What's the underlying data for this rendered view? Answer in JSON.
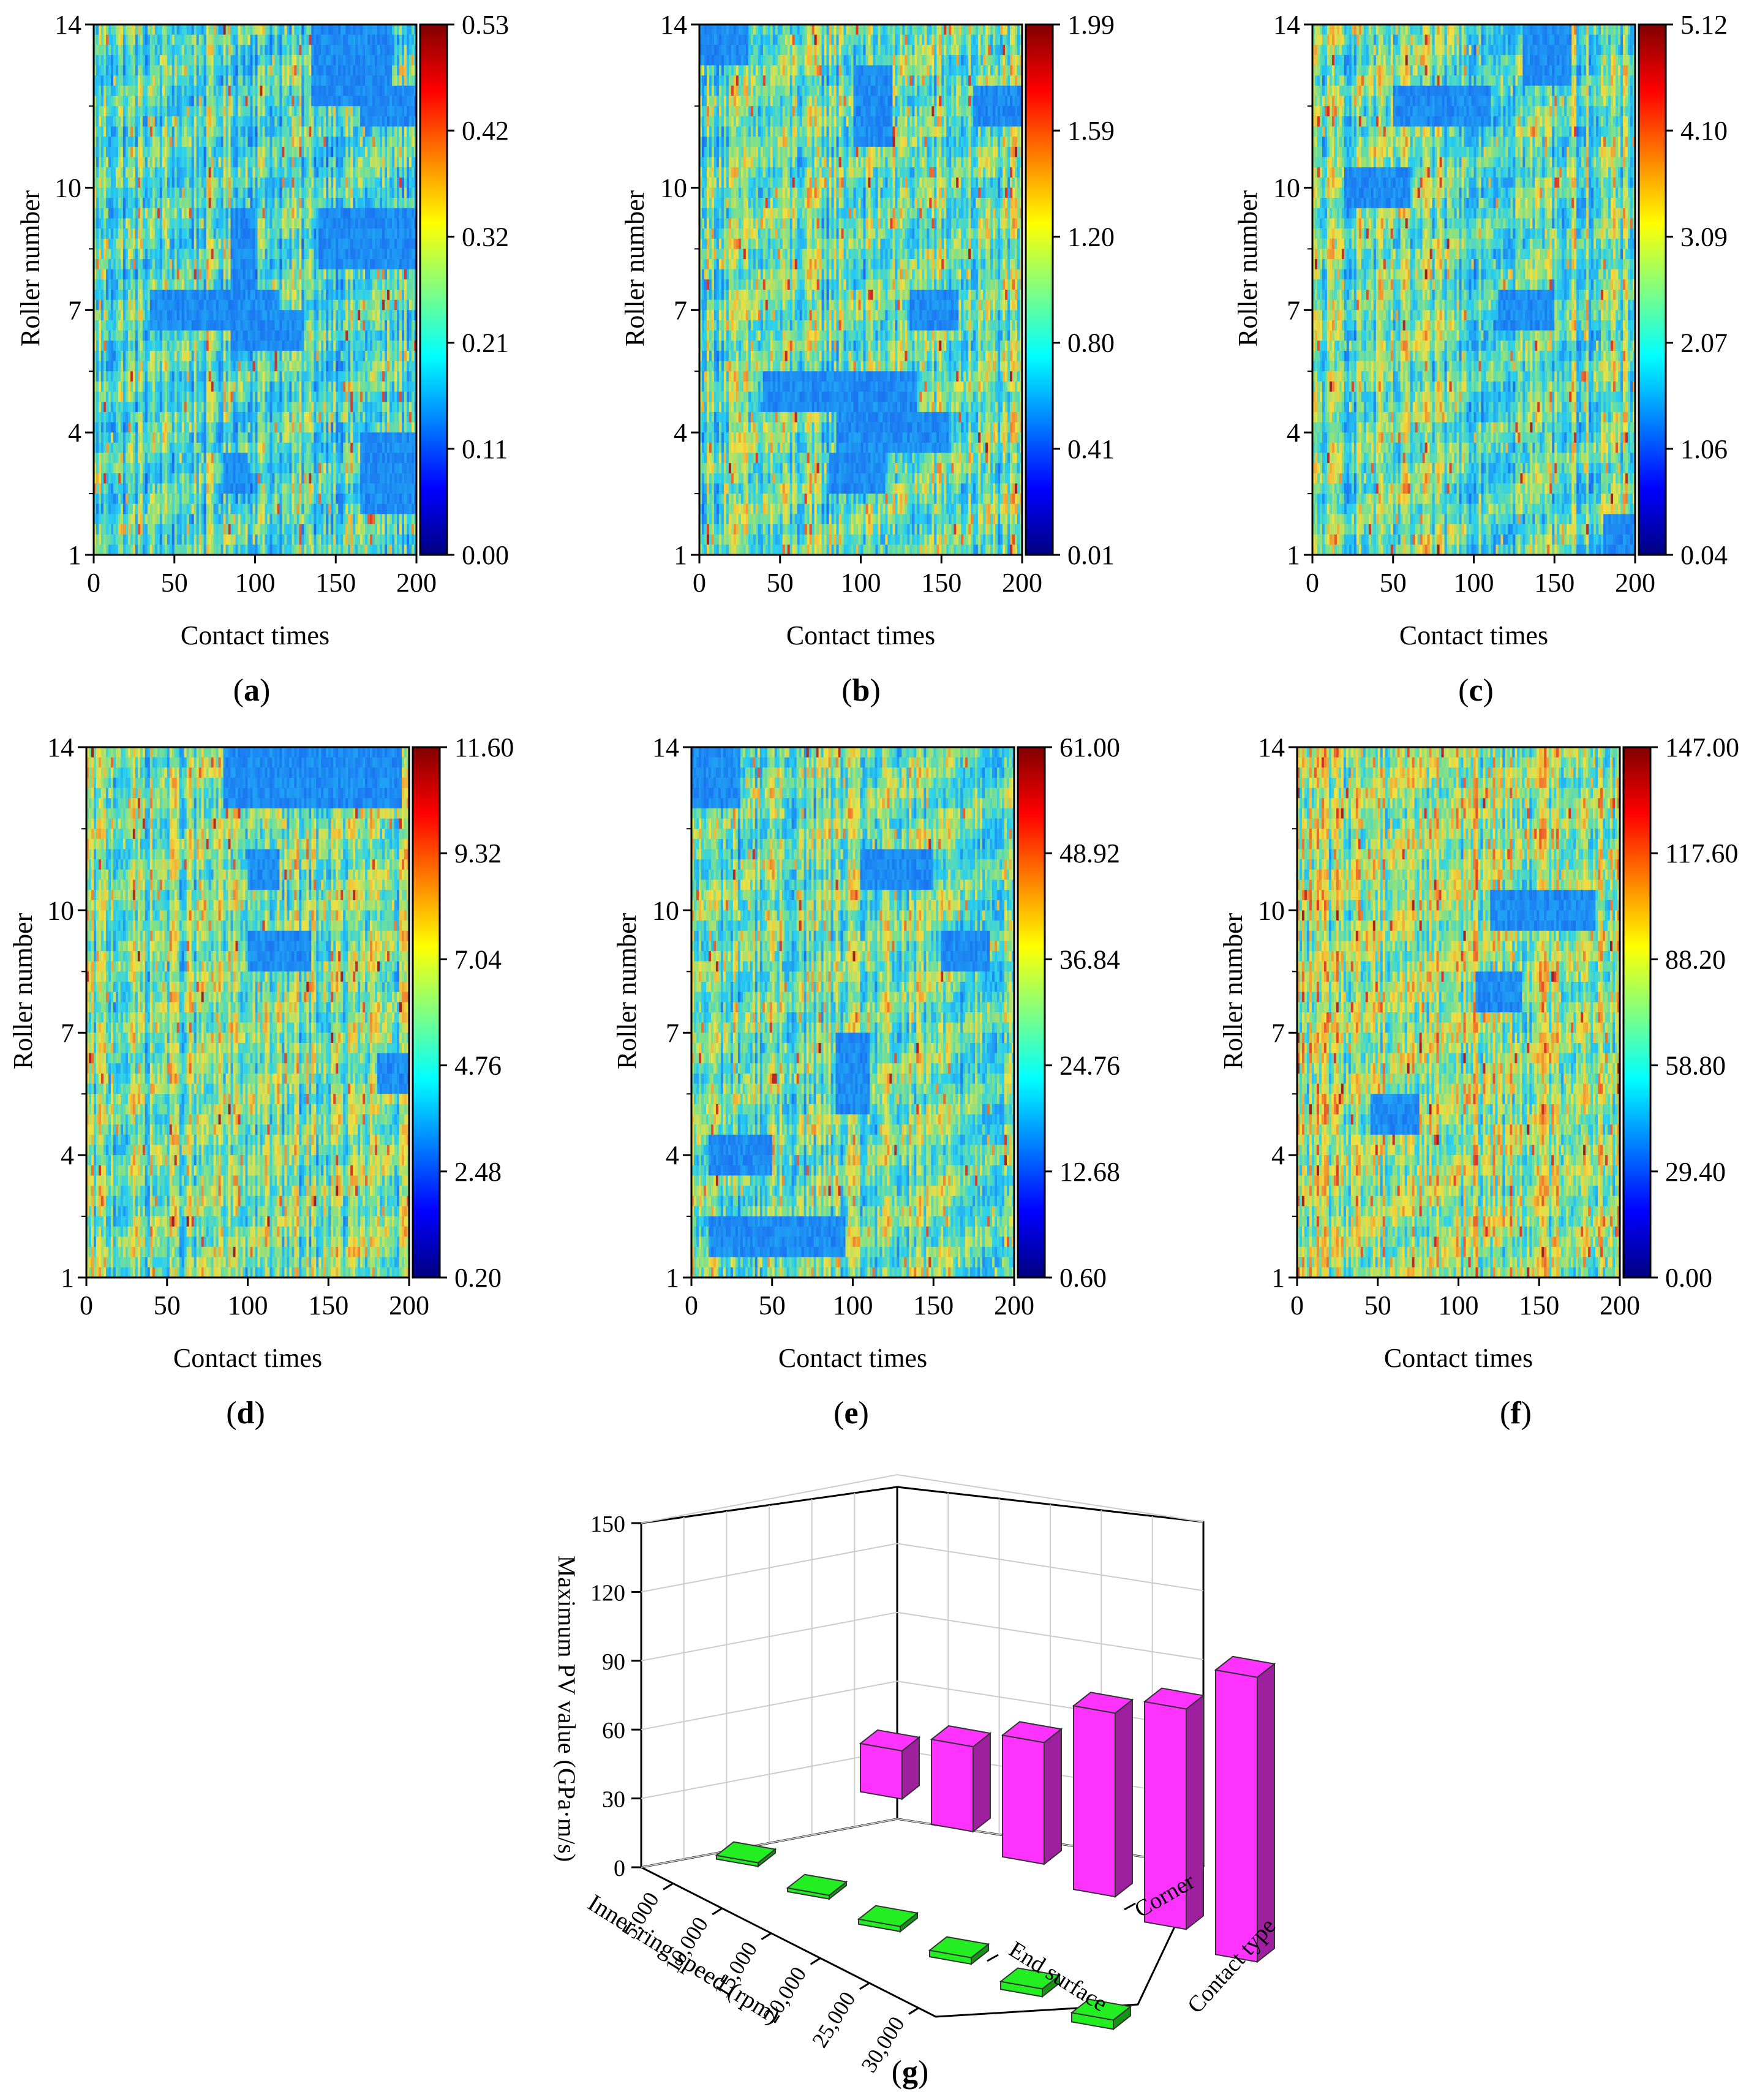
{
  "colormap": {
    "name": "jet",
    "stops": [
      "#000080",
      "#0000ff",
      "#0080ff",
      "#00ffff",
      "#80ff80",
      "#ffff00",
      "#ff8000",
      "#ff0000",
      "#800000"
    ],
    "heatmap_stops": [
      "#2030c0",
      "#1a6ff0",
      "#1fa0f5",
      "#2ad0ee",
      "#7ee08a",
      "#f0e040",
      "#f09030",
      "#e03a2a",
      "#a02020"
    ]
  },
  "chart_data": [
    {
      "id": "a",
      "type": "heatmap",
      "panel_label": "a",
      "xlabel": "Contact times",
      "ylabel": "Roller number",
      "xlim": [
        0,
        200
      ],
      "ylim": [
        1,
        14
      ],
      "xticks": [
        "0",
        "50",
        "100",
        "150",
        "200"
      ],
      "yticks": [
        "1",
        "4",
        "7",
        "10",
        "14"
      ],
      "colorbar": {
        "min": 0.0,
        "max": 0.53,
        "ticks": [
          "0.00",
          "0.11",
          "0.21",
          "0.32",
          "0.42",
          "0.53"
        ]
      },
      "baseline": 0.42,
      "low_regions": [
        {
          "x": [
            135,
            185
          ],
          "y": [
            12,
            14
          ]
        },
        {
          "x": [
            165,
            200
          ],
          "y": [
            11.5,
            12.5
          ]
        },
        {
          "x": [
            140,
            200
          ],
          "y": [
            8,
            9.5
          ]
        },
        {
          "x": [
            35,
            115
          ],
          "y": [
            6.5,
            7.5
          ]
        },
        {
          "x": [
            85,
            130
          ],
          "y": [
            6,
            7
          ]
        },
        {
          "x": [
            85,
            100
          ],
          "y": [
            7.5,
            9.5
          ]
        },
        {
          "x": [
            165,
            200
          ],
          "y": [
            2,
            4
          ]
        },
        {
          "x": [
            80,
            95
          ],
          "y": [
            2.5,
            3.5
          ]
        }
      ]
    },
    {
      "id": "b",
      "type": "heatmap",
      "panel_label": "b",
      "xlabel": "Contact times",
      "ylabel": "Roller number",
      "xlim": [
        0,
        200
      ],
      "ylim": [
        1,
        14
      ],
      "xticks": [
        "0",
        "50",
        "100",
        "150",
        "200"
      ],
      "yticks": [
        "1",
        "4",
        "7",
        "10",
        "14"
      ],
      "colorbar": {
        "min": 0.01,
        "max": 1.99,
        "ticks": [
          "0.01",
          "0.41",
          "0.80",
          "1.20",
          "1.59",
          "1.99"
        ]
      },
      "baseline": 0.45,
      "low_regions": [
        {
          "x": [
            40,
            135
          ],
          "y": [
            4.5,
            5.5
          ]
        },
        {
          "x": [
            85,
            155
          ],
          "y": [
            3.5,
            4.5
          ]
        },
        {
          "x": [
            80,
            115
          ],
          "y": [
            2.5,
            3.5
          ]
        },
        {
          "x": [
            95,
            120
          ],
          "y": [
            11,
            13
          ]
        },
        {
          "x": [
            170,
            200
          ],
          "y": [
            11.5,
            12.5
          ]
        },
        {
          "x": [
            130,
            160
          ],
          "y": [
            6.5,
            7.5
          ]
        },
        {
          "x": [
            0,
            30
          ],
          "y": [
            13,
            14
          ]
        }
      ]
    },
    {
      "id": "c",
      "type": "heatmap",
      "panel_label": "c",
      "xlabel": "Contact times",
      "ylabel": "Roller number",
      "xlim": [
        0,
        200
      ],
      "ylim": [
        1,
        14
      ],
      "xticks": [
        "0",
        "50",
        "100",
        "150",
        "200"
      ],
      "yticks": [
        "1",
        "4",
        "7",
        "10",
        "14"
      ],
      "colorbar": {
        "min": 0.04,
        "max": 5.12,
        "ticks": [
          "0.04",
          "1.06",
          "2.07",
          "3.09",
          "4.10",
          "5.12"
        ]
      },
      "baseline": 0.45,
      "low_regions": [
        {
          "x": [
            115,
            150
          ],
          "y": [
            6.5,
            7.5
          ]
        },
        {
          "x": [
            50,
            110
          ],
          "y": [
            11.5,
            12.5
          ]
        },
        {
          "x": [
            130,
            160
          ],
          "y": [
            12.5,
            14
          ]
        },
        {
          "x": [
            20,
            60
          ],
          "y": [
            9.5,
            10.5
          ]
        },
        {
          "x": [
            180,
            200
          ],
          "y": [
            1,
            2
          ]
        }
      ]
    },
    {
      "id": "d",
      "type": "heatmap",
      "panel_label": "d",
      "xlabel": "Contact times",
      "ylabel": "Roller number",
      "xlim": [
        0,
        200
      ],
      "ylim": [
        1,
        14
      ],
      "xticks": [
        "0",
        "50",
        "100",
        "150",
        "200"
      ],
      "yticks": [
        "1",
        "4",
        "7",
        "10",
        "14"
      ],
      "colorbar": {
        "min": 0.2,
        "max": 11.6,
        "ticks": [
          "0.20",
          "2.48",
          "4.76",
          "7.04",
          "9.32",
          "11.60"
        ]
      },
      "baseline": 0.48,
      "low_regions": [
        {
          "x": [
            85,
            195
          ],
          "y": [
            12.5,
            14
          ]
        },
        {
          "x": [
            100,
            140
          ],
          "y": [
            8.5,
            9.5
          ]
        },
        {
          "x": [
            180,
            200
          ],
          "y": [
            5.5,
            6.5
          ]
        },
        {
          "x": [
            100,
            120
          ],
          "y": [
            10.5,
            11.5
          ]
        }
      ]
    },
    {
      "id": "e",
      "type": "heatmap",
      "panel_label": "e",
      "xlabel": "Contact times",
      "ylabel": "Roller number",
      "xlim": [
        0,
        200
      ],
      "ylim": [
        1,
        14
      ],
      "xticks": [
        "0",
        "50",
        "100",
        "150",
        "200"
      ],
      "yticks": [
        "1",
        "4",
        "7",
        "10",
        "14"
      ],
      "colorbar": {
        "min": 0.6,
        "max": 61.0,
        "ticks": [
          "0.60",
          "12.68",
          "24.76",
          "36.84",
          "48.92",
          "61.00"
        ]
      },
      "baseline": 0.46,
      "low_regions": [
        {
          "x": [
            105,
            150
          ],
          "y": [
            10.5,
            11.5
          ]
        },
        {
          "x": [
            155,
            185
          ],
          "y": [
            8.5,
            9.5
          ]
        },
        {
          "x": [
            10,
            95
          ],
          "y": [
            1.5,
            2.5
          ]
        },
        {
          "x": [
            10,
            50
          ],
          "y": [
            3.5,
            4.5
          ]
        },
        {
          "x": [
            0,
            30
          ],
          "y": [
            12.5,
            14
          ]
        },
        {
          "x": [
            90,
            110
          ],
          "y": [
            5,
            7
          ]
        }
      ]
    },
    {
      "id": "f",
      "type": "heatmap",
      "panel_label": "f",
      "xlabel": "Contact times",
      "ylabel": "Roller number",
      "xlim": [
        0,
        200
      ],
      "ylim": [
        1,
        14
      ],
      "xticks": [
        "0",
        "50",
        "100",
        "150",
        "200"
      ],
      "yticks": [
        "1",
        "4",
        "7",
        "10",
        "14"
      ],
      "colorbar": {
        "min": 0.0,
        "max": 147.0,
        "ticks": [
          "0.00",
          "29.40",
          "58.80",
          "88.20",
          "117.60",
          "147.00"
        ]
      },
      "baseline": 0.55,
      "low_regions": [
        {
          "x": [
            45,
            75
          ],
          "y": [
            4.5,
            5.5
          ]
        },
        {
          "x": [
            120,
            185
          ],
          "y": [
            9.5,
            10.5
          ]
        },
        {
          "x": [
            110,
            140
          ],
          "y": [
            7.5,
            8.5
          ]
        }
      ]
    },
    {
      "id": "g",
      "type": "bar3d",
      "panel_label": "g",
      "zlabel": "Maximum PV value (GPa·m/s)",
      "xlabel": "Inner ring speed (rpm)",
      "ylabel": "Contact type",
      "zlim": [
        0,
        150
      ],
      "zticks": [
        "0",
        "30",
        "60",
        "90",
        "120",
        "150"
      ],
      "categories": [
        "5,000",
        "10,000",
        "15,000",
        "20,000",
        "25,000",
        "30,000"
      ],
      "contact_types": [
        "Corner",
        "End surface"
      ],
      "series": [
        {
          "name": "Corner",
          "color": "#ff33ff",
          "values": [
            21,
            37,
            53,
            80,
            96,
            124
          ]
        },
        {
          "name": "End surface",
          "color": "#22ee22",
          "values": [
            1.0,
            1.6,
            2.2,
            2.8,
            3.4,
            4.0
          ]
        }
      ]
    }
  ]
}
